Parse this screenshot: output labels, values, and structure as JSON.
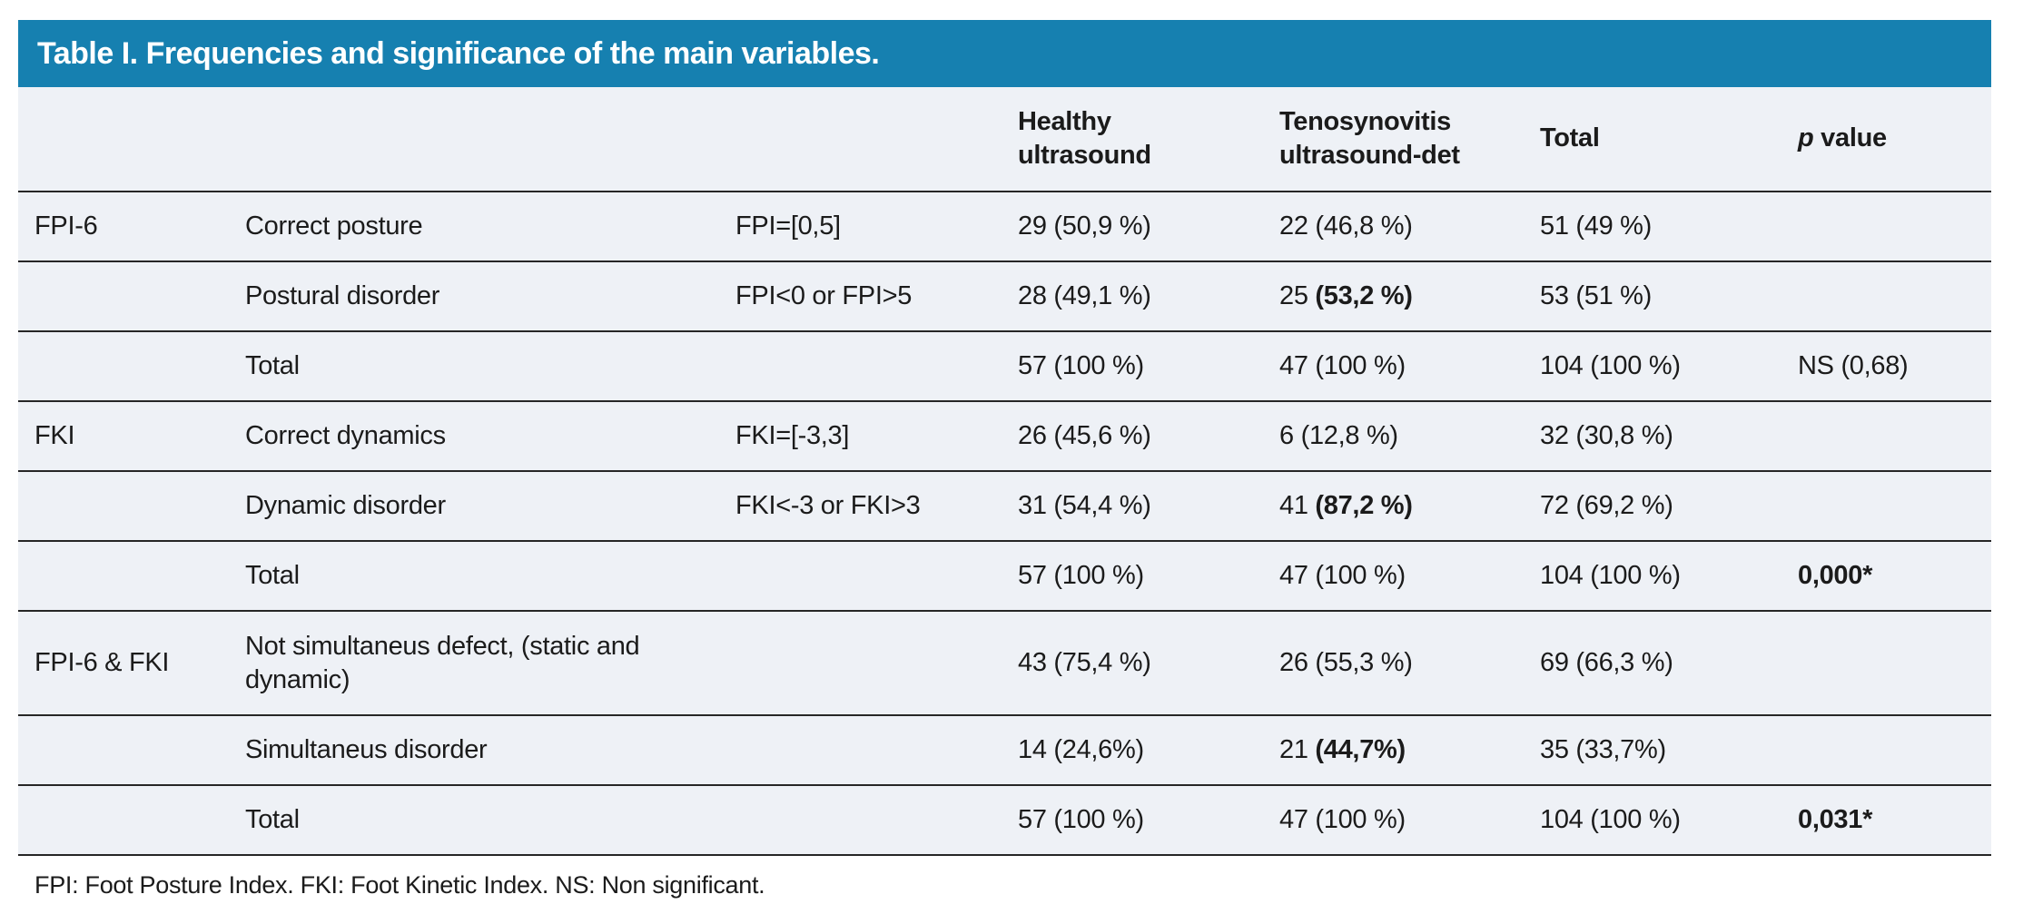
{
  "title": "Table I. Frequencies and significance of the main variables.",
  "colors": {
    "title_bar_bg": "#1680B0",
    "title_text": "#FFFFFF",
    "table_bg": "#EEF1F6",
    "rule_line": "#262626",
    "body_text": "#1B1B1B"
  },
  "header": {
    "group": "",
    "category": "",
    "criteria": "",
    "healthy": "Healthy ultrasound",
    "tenosynovitis": "Tenosynovitis ultrasound-det",
    "total": "Total",
    "p_italic": "p",
    "p_rest": " value"
  },
  "rows": [
    {
      "group": "FPI-6",
      "label": "Correct posture",
      "criteria": "FPI=[0,5]",
      "healthy": "29 (50,9 %)",
      "tenos": "22 (46,8 %)",
      "total": "51 (49 %)"
    },
    {
      "group": "",
      "label": "Postural disorder",
      "criteria": "FPI<0 or FPI>5",
      "healthy": "28 (49,1 %)",
      "tenos": "25 ",
      "tenos_bold": "(53,2 %)",
      "total": "53 (51 %)"
    },
    {
      "group": "",
      "label": "Total",
      "criteria": "",
      "healthy": "57 (100 %)",
      "tenos": "47 (100 %)",
      "total": "104 (100 %)",
      "p": "NS (0,68)"
    },
    {
      "group": "FKI",
      "label": "Correct dynamics",
      "criteria": "FKI=[-3,3]",
      "healthy": "26 (45,6 %)",
      "tenos": "6 (12,8 %)",
      "total": "32 (30,8 %)"
    },
    {
      "group": "",
      "label": "Dynamic disorder",
      "criteria": "FKI<-3 or FKI>3",
      "healthy": "31 (54,4 %)",
      "tenos": "41 ",
      "tenos_bold": "(87,2 %)",
      "total": "72 (69,2 %)"
    },
    {
      "group": "",
      "label": "Total",
      "criteria": "",
      "healthy": "57 (100 %)",
      "tenos": "47 (100 %)",
      "total": "104 (100 %)",
      "p_bold": "0,000*"
    },
    {
      "group": "FPI-6 & FKI",
      "label": "Not simultaneus defect, (static and dynamic)",
      "criteria": "",
      "healthy": "43 (75,4 %)",
      "tenos": "26 (55,3 %)",
      "total": "69 (66,3 %)"
    },
    {
      "group": "",
      "label": "Simultaneus disorder",
      "criteria": "",
      "healthy": "14 (24,6%)",
      "tenos": "21 ",
      "tenos_bold": "(44,7%)",
      "total": "35 (33,7%)"
    },
    {
      "group": "",
      "label": "Total",
      "criteria": "",
      "healthy": "57 (100 %)",
      "tenos": "47 (100 %)",
      "total": "104 (100 %)",
      "p_bold": "0,031*"
    }
  ],
  "footnote": "FPI: Foot Posture Index. FKI: Foot Kinetic Index. NS: Non significant."
}
